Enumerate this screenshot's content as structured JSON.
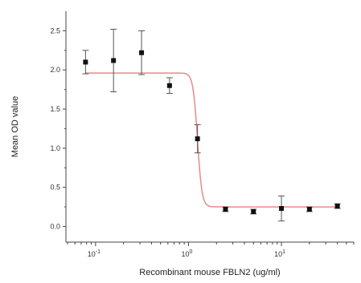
{
  "chart_data": {
    "type": "scatter",
    "title": "",
    "xlabel": "Recombinant mouse FBLN2 (ug/ml)",
    "ylabel": "Mean OD value",
    "x_scale": "log",
    "x_ticks": [
      {
        "value": 0.1,
        "base": "10",
        "exp": "-1"
      },
      {
        "value": 1,
        "base": "10",
        "exp": "0"
      },
      {
        "value": 10,
        "base": "10",
        "exp": "1"
      }
    ],
    "y_ticks": [
      "0.0",
      "0.5",
      "1.0",
      "1.5",
      "2.0",
      "2.5"
    ],
    "ylim": [
      -0.2,
      2.75
    ],
    "xlim": [
      0.048,
      60
    ],
    "grid": false,
    "series": [
      {
        "marker": "square",
        "color": "#111111",
        "points": [
          {
            "x": 0.078,
            "y": 2.1,
            "err": 0.15
          },
          {
            "x": 0.156,
            "y": 2.12,
            "err": 0.4
          },
          {
            "x": 0.3125,
            "y": 2.22,
            "err": 0.28
          },
          {
            "x": 0.625,
            "y": 1.8,
            "err": 0.1
          },
          {
            "x": 1.25,
            "y": 1.12,
            "err": 0.18
          },
          {
            "x": 2.5,
            "y": 0.22,
            "err": 0.03
          },
          {
            "x": 5,
            "y": 0.19,
            "err": 0.03
          },
          {
            "x": 10,
            "y": 0.23,
            "err": 0.16
          },
          {
            "x": 20,
            "y": 0.22,
            "err": 0.03
          },
          {
            "x": 40,
            "y": 0.26,
            "err": 0.03
          }
        ]
      }
    ],
    "fit": {
      "color": "#e88a8a",
      "top": 1.96,
      "bottom": 0.25,
      "ec50": 1.25,
      "hill": 18,
      "x_range": [
        0.078,
        40
      ]
    }
  }
}
